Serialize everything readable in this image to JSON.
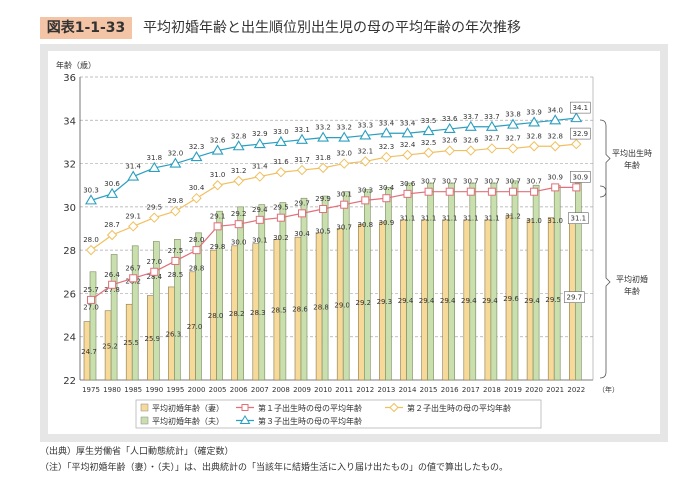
{
  "figure": {
    "number": "図表1-1-33",
    "title": "平均初婚年齢と出生順位別出生児の母の平均年齢の年次推移"
  },
  "chart_data": {
    "type": "bar+line",
    "ylabel": "年齢（歳）",
    "xunit": "（年）",
    "ylim": [
      22,
      36
    ],
    "yticks": [
      22,
      24,
      26,
      28,
      30,
      32,
      34,
      36
    ],
    "grid": true,
    "legend_position": "bottom",
    "categories": [
      "1975",
      "1980",
      "1985",
      "1990",
      "1995",
      "2000",
      "2005",
      "2006",
      "2007",
      "2008",
      "2009",
      "2010",
      "2011",
      "2012",
      "2013",
      "2014",
      "2015",
      "2016",
      "2017",
      "2018",
      "2019",
      "2020",
      "2021",
      "2022"
    ],
    "series": [
      {
        "name": "平均初婚年齢（妻）",
        "kind": "bar",
        "color": "#f7d99a",
        "values": [
          24.7,
          25.2,
          25.5,
          25.9,
          26.3,
          27.0,
          28.0,
          28.2,
          28.3,
          28.5,
          28.6,
          28.8,
          29.0,
          29.2,
          29.3,
          29.4,
          29.4,
          29.4,
          29.4,
          29.4,
          29.6,
          29.4,
          29.5,
          29.7
        ]
      },
      {
        "name": "平均初婚年齢（夫）",
        "kind": "bar",
        "color": "#c9dfae",
        "values": [
          27.0,
          27.8,
          28.2,
          28.4,
          28.5,
          28.8,
          29.8,
          30.0,
          30.1,
          30.2,
          30.4,
          30.5,
          30.7,
          30.8,
          30.9,
          31.1,
          31.1,
          31.1,
          31.1,
          31.1,
          31.2,
          31.0,
          31.0,
          31.1
        ]
      },
      {
        "name": "第１子出生時の母の平均年齢",
        "kind": "line",
        "marker": "square",
        "color": "#e0707a",
        "values": [
          25.7,
          26.4,
          26.7,
          27.0,
          27.5,
          28.0,
          29.1,
          29.2,
          29.4,
          29.5,
          29.7,
          29.9,
          30.1,
          30.3,
          30.4,
          30.6,
          30.7,
          30.7,
          30.7,
          30.7,
          30.7,
          30.7,
          30.9,
          30.9
        ]
      },
      {
        "name": "第２子出生時の母の平均年齢",
        "kind": "line",
        "marker": "diamond",
        "color": "#f0c060",
        "values": [
          28.0,
          28.7,
          29.1,
          29.5,
          29.8,
          30.4,
          31.0,
          31.2,
          31.4,
          31.6,
          31.7,
          31.8,
          32.0,
          32.1,
          32.3,
          32.4,
          32.5,
          32.6,
          32.6,
          32.7,
          32.7,
          32.8,
          32.8,
          32.9
        ]
      },
      {
        "name": "第３子出生時の母の平均年齢",
        "kind": "line",
        "marker": "triangle",
        "color": "#2a9fc0",
        "values": [
          30.3,
          30.6,
          31.4,
          31.8,
          32.0,
          32.3,
          32.6,
          32.8,
          32.9,
          33.0,
          33.1,
          33.2,
          33.2,
          33.3,
          33.4,
          33.4,
          33.5,
          33.6,
          33.7,
          33.7,
          33.8,
          33.9,
          34.0,
          34.1
        ]
      }
    ],
    "annotations": [
      {
        "text": "平均出生時年齢",
        "lines": [
          "平均出生時",
          "年齢"
        ]
      },
      {
        "text": "平均初婚年齢",
        "lines": [
          "平均初婚",
          "年齢"
        ]
      }
    ]
  },
  "notes": {
    "source": "（出典）厚生労働省「人口動態統計」（確定数）",
    "note": "（注）「平均初婚年齢（妻）・（夫）」は、出典統計の「当該年に結婚生活に入り届け出たもの」の値で算出したもの。"
  }
}
